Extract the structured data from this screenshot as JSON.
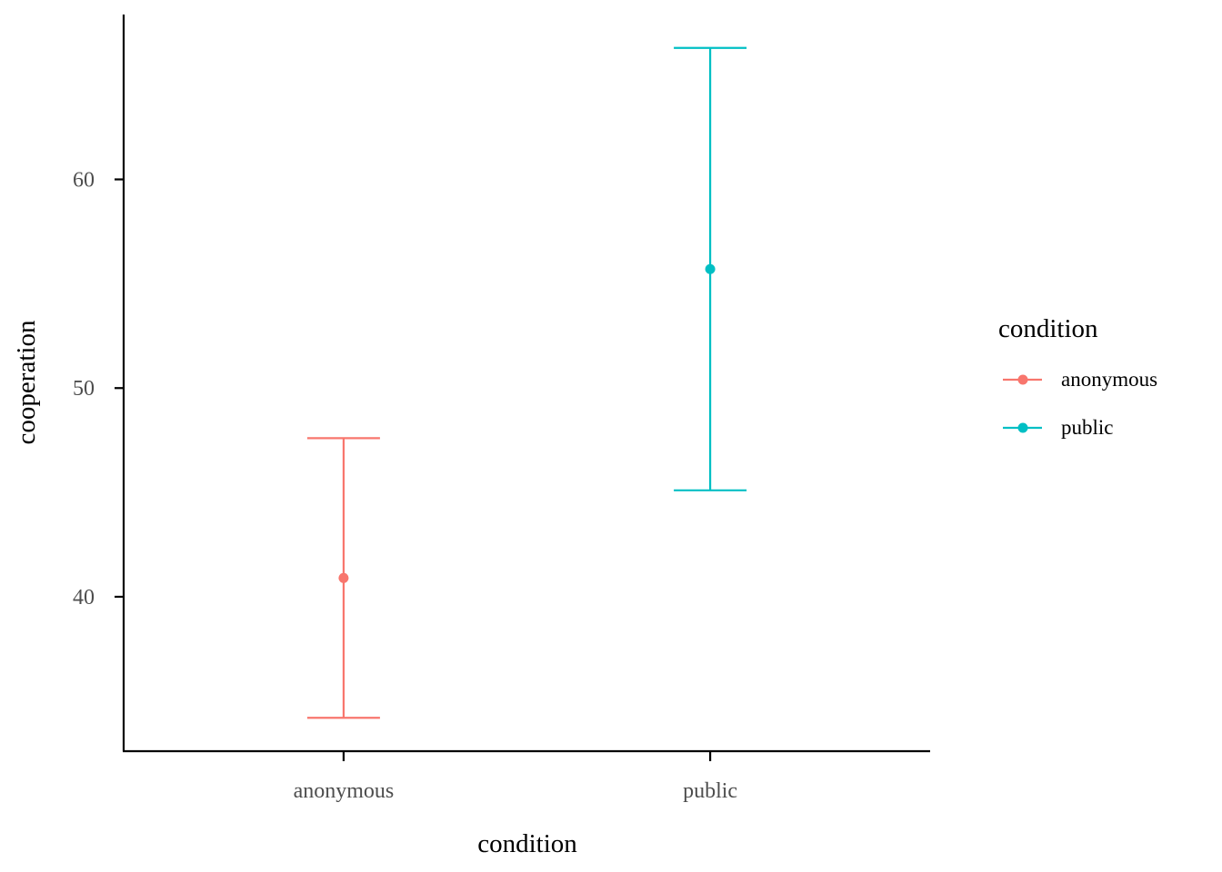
{
  "chart_data": {
    "type": "errorbar",
    "xlabel": "condition",
    "ylabel": "cooperation",
    "categories": [
      "anonymous",
      "public"
    ],
    "series": [
      {
        "name": "anonymous",
        "category": "anonymous",
        "mean": 40.9,
        "lower": 34.2,
        "upper": 47.6,
        "color": "#F8766D"
      },
      {
        "name": "public",
        "category": "public",
        "mean": 55.7,
        "lower": 45.1,
        "upper": 66.3,
        "color": "#00BFC4"
      }
    ],
    "y_ticks": [
      40,
      50,
      60
    ],
    "ylim": [
      32.6,
      67.9
    ],
    "grid": false,
    "legend": {
      "title": "condition",
      "position": "right",
      "entries": [
        "anonymous",
        "public"
      ]
    }
  }
}
